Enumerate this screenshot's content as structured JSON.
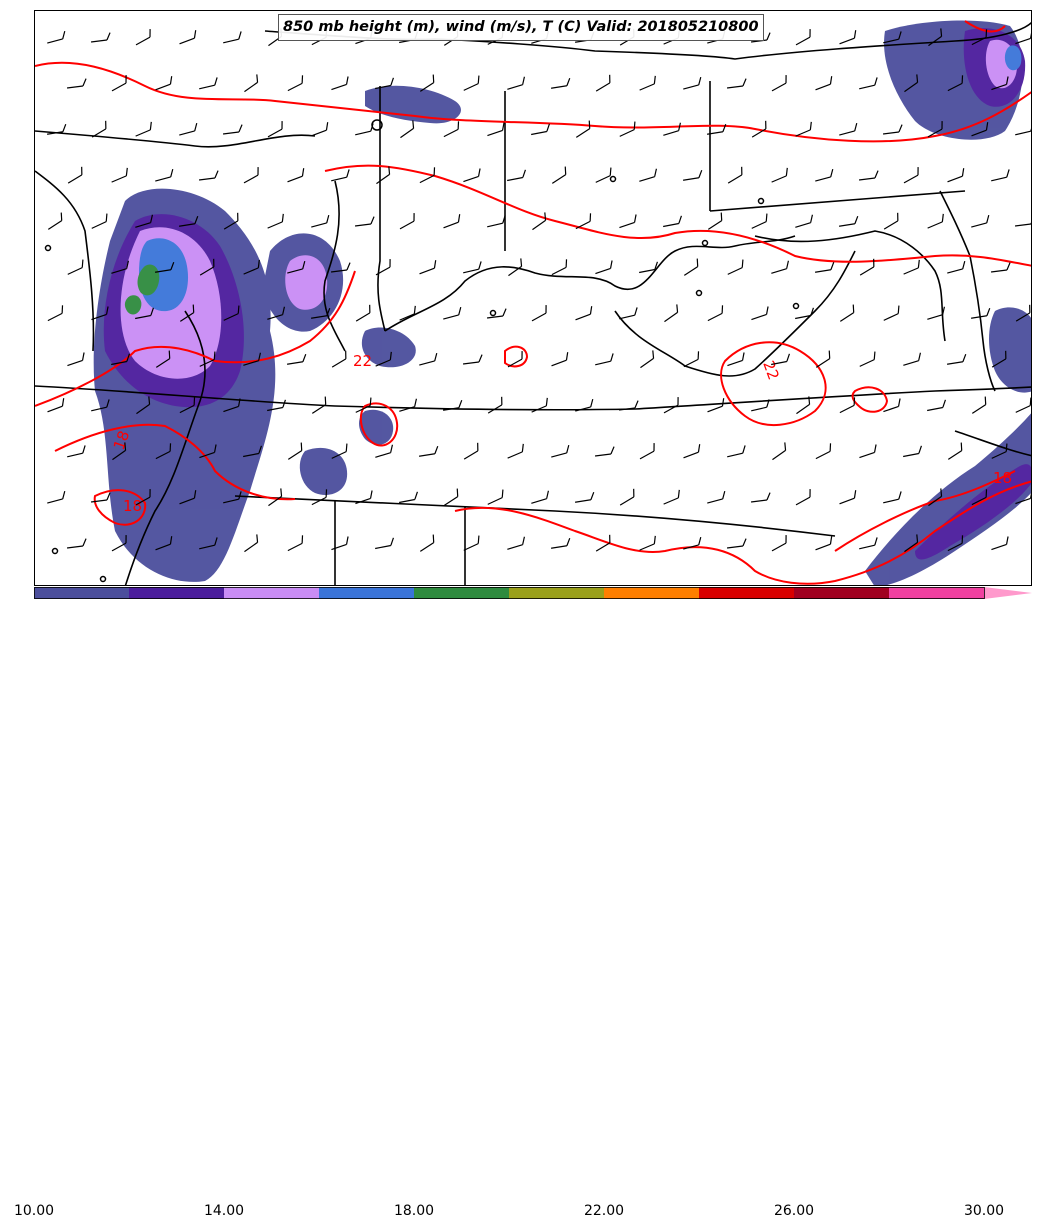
{
  "title": "850 mb height (m), wind (m/s), T (C) Valid: 201805210800",
  "temperature_contours": {
    "color": "#ff0000",
    "labels": [
      "22",
      "22",
      "18",
      "18",
      "18"
    ]
  },
  "colorbar": {
    "colors": [
      "#4b4e9c",
      "#4b1c9c",
      "#c98cf5",
      "#3a74d9",
      "#2e8b3e",
      "#9aa01a",
      "#ff7f00",
      "#d90000",
      "#a00020",
      "#f040a0",
      "#ff99cc"
    ],
    "tick_labels": [
      "10.00",
      "14.00",
      "18.00",
      "22.00",
      "26.00",
      "30.00"
    ]
  },
  "chart_data": {
    "type": "map",
    "fields": [
      "850 mb height (m)",
      "wind (m/s)",
      "T (C)"
    ],
    "valid": "201805210800",
    "shading_range": [
      10,
      30
    ],
    "shading_levels": [
      10,
      12,
      14,
      16,
      18,
      20,
      22,
      24,
      26,
      28,
      30
    ],
    "contour_labels": [
      22,
      22,
      18,
      18,
      18
    ]
  }
}
